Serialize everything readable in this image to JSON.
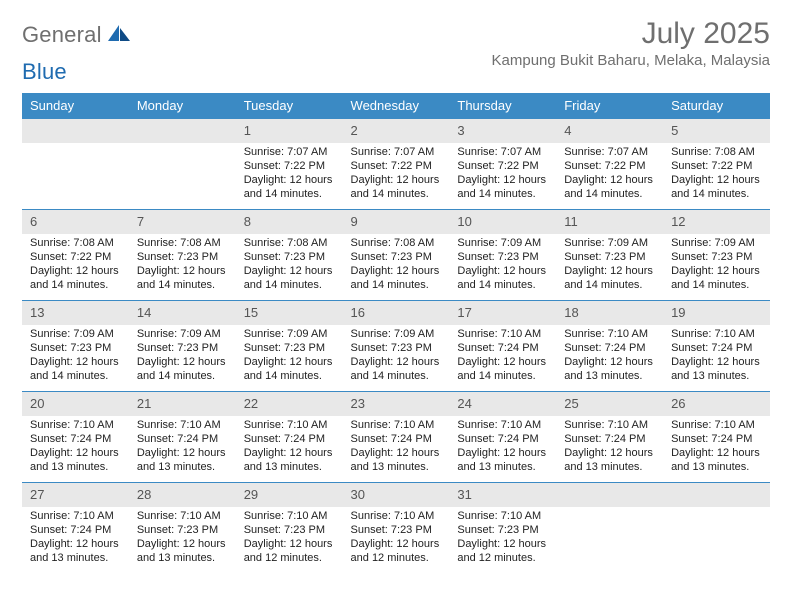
{
  "brand": {
    "text1": "General",
    "text2": "Blue"
  },
  "colors": {
    "accent": "#3b8ac4",
    "muted_text": "#6f6f6f",
    "day_row_bg": "#e8e8e8",
    "logo_blue": "#1f6bb0",
    "logo_darkblue": "#0e4a85"
  },
  "title": "July 2025",
  "location": "Kampung Bukit Baharu, Melaka, Malaysia",
  "weekdays": [
    "Sunday",
    "Monday",
    "Tuesday",
    "Wednesday",
    "Thursday",
    "Friday",
    "Saturday"
  ],
  "weeks": [
    {
      "days": [
        "",
        "",
        "1",
        "2",
        "3",
        "4",
        "5"
      ],
      "details": [
        "",
        "",
        "Sunrise: 7:07 AM\nSunset: 7:22 PM\nDaylight: 12 hours and 14 minutes.",
        "Sunrise: 7:07 AM\nSunset: 7:22 PM\nDaylight: 12 hours and 14 minutes.",
        "Sunrise: 7:07 AM\nSunset: 7:22 PM\nDaylight: 12 hours and 14 minutes.",
        "Sunrise: 7:07 AM\nSunset: 7:22 PM\nDaylight: 12 hours and 14 minutes.",
        "Sunrise: 7:08 AM\nSunset: 7:22 PM\nDaylight: 12 hours and 14 minutes."
      ]
    },
    {
      "days": [
        "6",
        "7",
        "8",
        "9",
        "10",
        "11",
        "12"
      ],
      "details": [
        "Sunrise: 7:08 AM\nSunset: 7:22 PM\nDaylight: 12 hours and 14 minutes.",
        "Sunrise: 7:08 AM\nSunset: 7:23 PM\nDaylight: 12 hours and 14 minutes.",
        "Sunrise: 7:08 AM\nSunset: 7:23 PM\nDaylight: 12 hours and 14 minutes.",
        "Sunrise: 7:08 AM\nSunset: 7:23 PM\nDaylight: 12 hours and 14 minutes.",
        "Sunrise: 7:09 AM\nSunset: 7:23 PM\nDaylight: 12 hours and 14 minutes.",
        "Sunrise: 7:09 AM\nSunset: 7:23 PM\nDaylight: 12 hours and 14 minutes.",
        "Sunrise: 7:09 AM\nSunset: 7:23 PM\nDaylight: 12 hours and 14 minutes."
      ]
    },
    {
      "days": [
        "13",
        "14",
        "15",
        "16",
        "17",
        "18",
        "19"
      ],
      "details": [
        "Sunrise: 7:09 AM\nSunset: 7:23 PM\nDaylight: 12 hours and 14 minutes.",
        "Sunrise: 7:09 AM\nSunset: 7:23 PM\nDaylight: 12 hours and 14 minutes.",
        "Sunrise: 7:09 AM\nSunset: 7:23 PM\nDaylight: 12 hours and 14 minutes.",
        "Sunrise: 7:09 AM\nSunset: 7:23 PM\nDaylight: 12 hours and 14 minutes.",
        "Sunrise: 7:10 AM\nSunset: 7:24 PM\nDaylight: 12 hours and 14 minutes.",
        "Sunrise: 7:10 AM\nSunset: 7:24 PM\nDaylight: 12 hours and 13 minutes.",
        "Sunrise: 7:10 AM\nSunset: 7:24 PM\nDaylight: 12 hours and 13 minutes."
      ]
    },
    {
      "days": [
        "20",
        "21",
        "22",
        "23",
        "24",
        "25",
        "26"
      ],
      "details": [
        "Sunrise: 7:10 AM\nSunset: 7:24 PM\nDaylight: 12 hours and 13 minutes.",
        "Sunrise: 7:10 AM\nSunset: 7:24 PM\nDaylight: 12 hours and 13 minutes.",
        "Sunrise: 7:10 AM\nSunset: 7:24 PM\nDaylight: 12 hours and 13 minutes.",
        "Sunrise: 7:10 AM\nSunset: 7:24 PM\nDaylight: 12 hours and 13 minutes.",
        "Sunrise: 7:10 AM\nSunset: 7:24 PM\nDaylight: 12 hours and 13 minutes.",
        "Sunrise: 7:10 AM\nSunset: 7:24 PM\nDaylight: 12 hours and 13 minutes.",
        "Sunrise: 7:10 AM\nSunset: 7:24 PM\nDaylight: 12 hours and 13 minutes."
      ]
    },
    {
      "days": [
        "27",
        "28",
        "29",
        "30",
        "31",
        "",
        ""
      ],
      "details": [
        "Sunrise: 7:10 AM\nSunset: 7:24 PM\nDaylight: 12 hours and 13 minutes.",
        "Sunrise: 7:10 AM\nSunset: 7:23 PM\nDaylight: 12 hours and 13 minutes.",
        "Sunrise: 7:10 AM\nSunset: 7:23 PM\nDaylight: 12 hours and 12 minutes.",
        "Sunrise: 7:10 AM\nSunset: 7:23 PM\nDaylight: 12 hours and 12 minutes.",
        "Sunrise: 7:10 AM\nSunset: 7:23 PM\nDaylight: 12 hours and 12 minutes.",
        "",
        ""
      ]
    }
  ]
}
